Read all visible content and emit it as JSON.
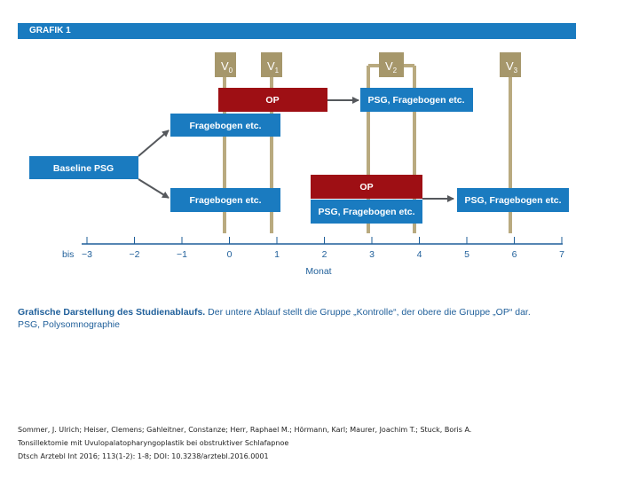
{
  "figure": {
    "title": "GRAFIK 1",
    "colors": {
      "header": "#1a7bc0",
      "blue_box": "#1a7bc0",
      "red_box": "#9e0f14",
      "visit_line": "#b9aa7f",
      "visit_label_bg": "#a6976b",
      "arrow": "#55585c"
    },
    "visits": [
      {
        "label_main": "V",
        "label_sub": "0"
      },
      {
        "label_main": "V",
        "label_sub": "1"
      },
      {
        "label_main": "V",
        "label_sub": "2"
      },
      {
        "label_main": "V",
        "label_sub": "3"
      }
    ],
    "boxes": {
      "baseline": "Baseline PSG",
      "op_upper": "OP",
      "psg_upper": "PSG, Fragebogen etc.",
      "frage_upper": "Fragebogen etc.",
      "frage_lower": "Fragebogen etc.",
      "op_lower": "OP",
      "psg_lower_mid": "PSG, Fragebogen etc.",
      "psg_lower_right": "PSG, Fragebogen etc."
    },
    "axis": {
      "prefix": "bis",
      "ticks": [
        "−3",
        "−2",
        "−1",
        "0",
        "1",
        "2",
        "3",
        "4",
        "5",
        "6",
        "7"
      ],
      "label": "Monat"
    }
  },
  "caption": {
    "bold": "Grafische Darstellung des Studienablaufs.",
    "rest": " Der untere Ablauf stellt die Gruppe „Kontrolle“, der obere die Gruppe „OP“ dar.",
    "line2": "PSG, Polysomnographie"
  },
  "citation": [
    "Sommer, J. Ulrich; Heiser, Clemens; Gahleitner, Constanze; Herr, Raphael M.; Hörmann, Karl; Maurer, Joachim T.; Stuck, Boris A.",
    "Tonsillektomie mit Uvulopalatopharyngoplastik bei obstruktiver Schlafapnoe",
    "Dtsch Arztebl Int 2016; 113(1-2): 1-8; DOI: 10.3238/arztebl.2016.0001"
  ]
}
